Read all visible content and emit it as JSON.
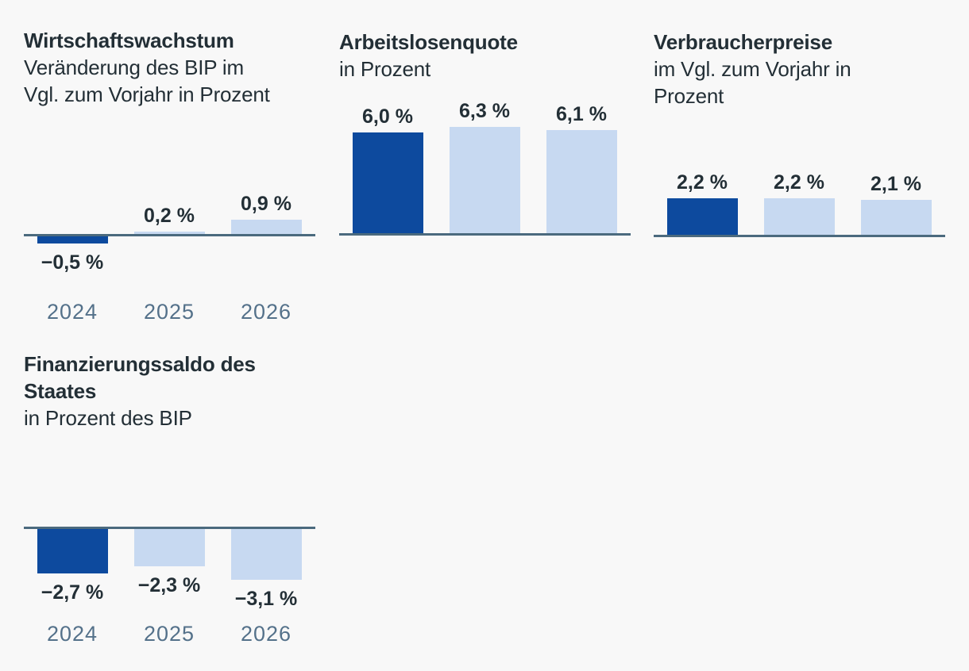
{
  "colors": {
    "background": "#f8f8f8",
    "bar_primary": "#0d4a9e",
    "bar_secondary": "#c7d9f1",
    "axis_line": "#4b6a7e",
    "text": "#232f36",
    "year_label": "#54718a"
  },
  "chart_data": [
    {
      "type": "bar",
      "title": "Wirtschaftswachstum",
      "subtitle": "Veränderung des BIP im\nVgl. zum Vorjahr in Prozent",
      "unit": "percent",
      "categories": [
        "2024",
        "2025",
        "2026"
      ],
      "values": [
        -0.5,
        0.2,
        0.9
      ],
      "value_labels": [
        "−0,5 %",
        "0,2 %",
        "0,9 %"
      ],
      "highlight_index": 0,
      "show_category_labels": true,
      "grid": false,
      "legend": false
    },
    {
      "type": "bar",
      "title": "Arbeitslosenquote",
      "subtitle": "in Prozent",
      "unit": "percent",
      "values": [
        6.0,
        6.3,
        6.1
      ],
      "value_labels": [
        "6,0 %",
        "6,3 %",
        "6,1 %"
      ],
      "highlight_index": 0,
      "show_category_labels": false,
      "grid": false,
      "legend": false
    },
    {
      "type": "bar",
      "title": "Verbraucherpreise",
      "subtitle": "im Vgl. zum Vorjahr in\nProzent",
      "unit": "percent",
      "values": [
        2.2,
        2.2,
        2.1
      ],
      "value_labels": [
        "2,2 %",
        "2,2 %",
        "2,1 %"
      ],
      "highlight_index": 0,
      "show_category_labels": false,
      "grid": false,
      "legend": false
    },
    {
      "type": "bar",
      "title": "Finanzierungssaldo des\nStaates",
      "subtitle": "in Prozent des BIP",
      "unit": "percent",
      "categories": [
        "2024",
        "2025",
        "2026"
      ],
      "values": [
        -2.7,
        -2.3,
        -3.1
      ],
      "value_labels": [
        "−2,7 %",
        "−2,3 %",
        "−3,1 %"
      ],
      "highlight_index": 0,
      "show_category_labels": true,
      "grid": false,
      "legend": false
    }
  ]
}
